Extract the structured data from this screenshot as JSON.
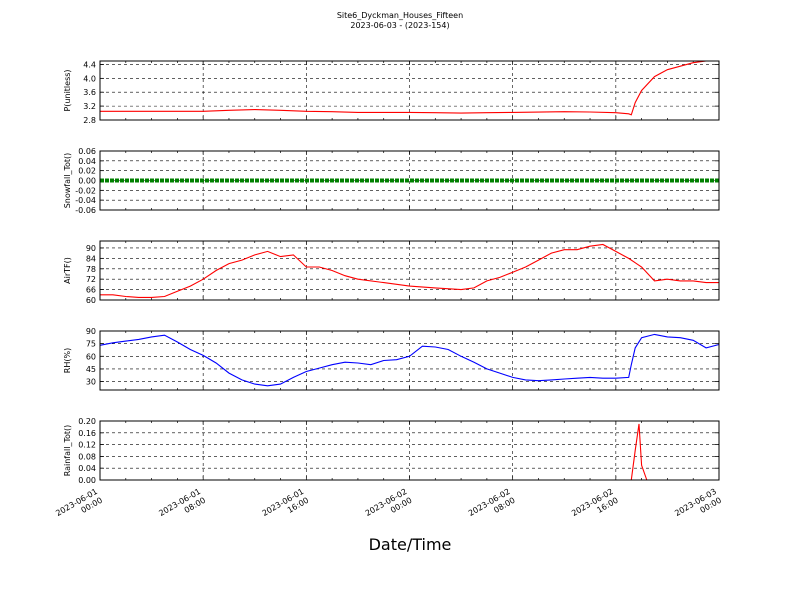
{
  "chart_data": {
    "type": "line",
    "title": "Site6_Dyckman_Houses_Fifteen",
    "subtitle": "2023-06-03 - (2023-154)",
    "xlabel": "Date/Time",
    "x_ticks": [
      [
        "2023-06-01",
        "00:00"
      ],
      [
        "2023-06-01",
        "08:00"
      ],
      [
        "2023-06-01",
        "16:00"
      ],
      [
        "2023-06-02",
        "00:00"
      ],
      [
        "2023-06-02",
        "08:00"
      ],
      [
        "2023-06-02",
        "16:00"
      ],
      [
        "2023-06-03",
        "00:00"
      ]
    ],
    "xlim": [
      "2023-06-01 00:00",
      "2023-06-03 00:00"
    ],
    "grid": true,
    "panels": [
      {
        "ylabel": "P(unitless)",
        "ylim": [
          2.8,
          4.5
        ],
        "yticks": [
          "2.8",
          "3.2",
          "3.6",
          "4.0",
          "4.4"
        ],
        "color": "#ff0000",
        "series": {
          "x": [
            0,
            4,
            8,
            10,
            12,
            14,
            16,
            18,
            20,
            22,
            24,
            26,
            28,
            30,
            32,
            36,
            38,
            40,
            41,
            41.2,
            41.5,
            42,
            43,
            44,
            45,
            46,
            47,
            48
          ],
          "y": [
            3.05,
            3.05,
            3.05,
            3.08,
            3.1,
            3.08,
            3.05,
            3.04,
            3.02,
            3.02,
            3.02,
            3.01,
            3.0,
            3.01,
            3.02,
            3.04,
            3.03,
            3.01,
            2.98,
            2.95,
            3.3,
            3.65,
            4.05,
            4.25,
            4.35,
            4.45,
            4.5,
            4.5
          ]
        }
      },
      {
        "ylabel": "Snowfall_Tot()",
        "ylim": [
          -0.06,
          0.06
        ],
        "yticks": [
          "-0.06",
          "-0.04",
          "-0.02",
          "0.00",
          "0.02",
          "0.04",
          "0.06"
        ],
        "color": "#008000",
        "series": {
          "x": [
            0,
            4,
            8,
            12,
            16,
            20,
            24,
            28,
            32,
            36,
            40,
            44,
            48
          ],
          "y": [
            0,
            0,
            0,
            0,
            0,
            0,
            0,
            0,
            0,
            0,
            0,
            0,
            0
          ]
        }
      },
      {
        "ylabel": "AirTF()",
        "ylim": [
          60,
          94
        ],
        "yticks": [
          "60",
          "66",
          "72",
          "78",
          "84",
          "90"
        ],
        "color": "#ff0000",
        "series": {
          "x": [
            0,
            1,
            2,
            3,
            4,
            5,
            6,
            7,
            8,
            9,
            10,
            11,
            12,
            13,
            14,
            15,
            16,
            17,
            18,
            19,
            20,
            22,
            24,
            26,
            28,
            29,
            30,
            31,
            32,
            33,
            34,
            35,
            36,
            37,
            38,
            39,
            40,
            41,
            42,
            43,
            44,
            45,
            46,
            47,
            48
          ],
          "y": [
            63,
            63,
            62,
            61.5,
            61.5,
            62,
            65,
            68,
            72,
            77,
            81,
            83,
            86,
            88,
            85,
            86,
            79,
            79,
            77,
            74,
            72,
            70,
            68,
            67,
            66,
            67,
            71,
            73,
            76,
            79,
            83,
            87,
            89,
            89,
            91,
            92,
            88,
            84,
            79,
            71,
            72,
            71,
            71,
            70,
            70
          ]
        }
      },
      {
        "ylabel": "RH(%)",
        "ylim": [
          20,
          90
        ],
        "yticks": [
          "30",
          "45",
          "60",
          "75",
          "90"
        ],
        "color": "#0000ff",
        "series": {
          "x": [
            0,
            1,
            2,
            3,
            4,
            5,
            6,
            7,
            8,
            9,
            10,
            11,
            12,
            13,
            14,
            15,
            16,
            17,
            18,
            19,
            20,
            21,
            22,
            23,
            24,
            25,
            26,
            27,
            28,
            29,
            30,
            31,
            32,
            33,
            34,
            35,
            36,
            37,
            38,
            39,
            40,
            41,
            41.2,
            41.5,
            42,
            43,
            44,
            45,
            46,
            47,
            48
          ],
          "y": [
            73,
            76,
            78,
            80,
            83,
            85,
            77,
            68,
            61,
            52,
            40,
            32,
            27,
            25,
            27,
            35,
            42,
            46,
            50,
            53,
            52,
            50,
            55,
            56,
            60,
            72,
            71,
            68,
            60,
            53,
            45,
            40,
            35,
            32,
            31,
            32,
            33,
            34,
            35,
            34,
            34,
            35,
            50,
            70,
            82,
            86,
            83,
            82,
            79,
            70,
            74
          ]
        }
      },
      {
        "ylabel": "Rainfall_Tot()",
        "ylim": [
          0,
          0.2
        ],
        "yticks": [
          "0.00",
          "0.04",
          "0.08",
          "0.12",
          "0.16",
          "0.20"
        ],
        "color": "#ff0000",
        "series": {
          "x": [
            0,
            8,
            16,
            24,
            32,
            40,
            41.2,
            41.5,
            41.8,
            42.0,
            42.4,
            44,
            48
          ],
          "y": [
            0,
            0,
            0,
            0,
            0,
            0,
            0,
            0.1,
            0.19,
            0.05,
            0,
            0,
            0
          ]
        }
      }
    ]
  }
}
